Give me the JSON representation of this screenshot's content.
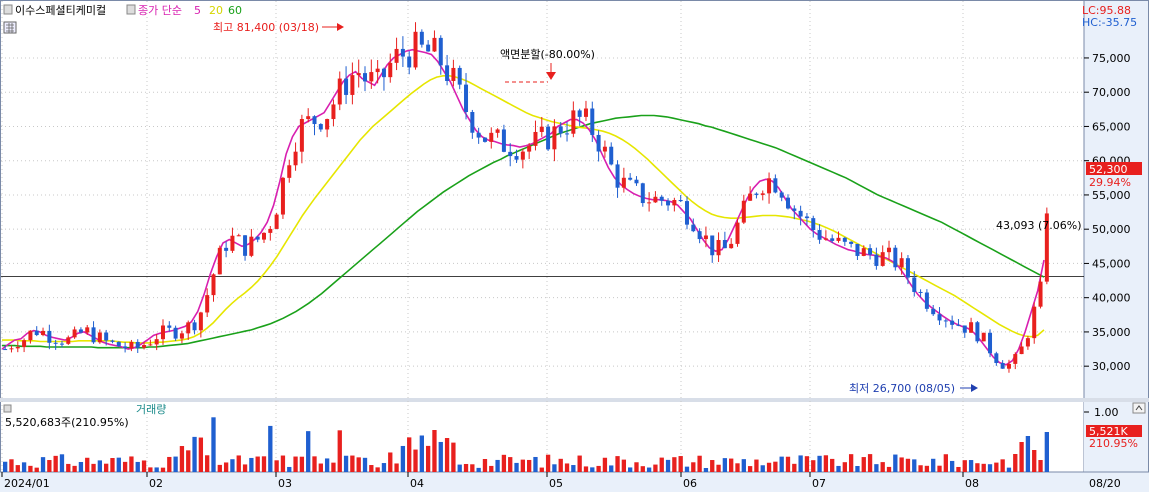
{
  "header": {
    "stock_name": "이수스페셜티케미컬",
    "ma_label": "종가 단순",
    "ma_periods": [
      "5",
      "20",
      "60"
    ],
    "ma_colors": [
      "#d81fb0",
      "#e6e600",
      "#1aa11a"
    ]
  },
  "axis_badges": {
    "lc": "LC:95.88",
    "hc": "HC:-35.75"
  },
  "annotations": {
    "high": "최고 81,400 (03/18)",
    "low": "최저 26,700 (08/05)",
    "split": "액면분할(-80.00%)",
    "ref_line": "43,093 (7.06%)",
    "current_price": "52,300",
    "current_pct": "29.94%"
  },
  "volume_panel": {
    "title": "거래량",
    "value_text": "5,520,683주(210.95%)",
    "top_tick": "1.00",
    "current_badge": "5,521K",
    "current_pct": "210.95%"
  },
  "colors": {
    "up": "#e8201e",
    "down": "#1f5fd0",
    "ma5": "#d81fb0",
    "ma20": "#e6e600",
    "ma60": "#1aa11a",
    "grid": "#c8c8c8",
    "axis_bg": "#e9f0fa"
  },
  "chart_data": {
    "type": "candlestick",
    "title": "이수스페셜티케미컬",
    "y_ticks": [
      30000,
      35000,
      40000,
      45000,
      50000,
      55000,
      60000,
      65000,
      70000,
      75000
    ],
    "y_tick_labels": [
      "30,000",
      "35,000",
      "40,000",
      "45,000",
      "50,000",
      "55,000",
      "60,000",
      "65,000",
      "70,000",
      "75,000"
    ],
    "ylim": [
      25500,
      82000
    ],
    "x_ticks": [
      "2024/01",
      "02",
      "03",
      "04",
      "05",
      "06",
      "07",
      "08",
      "08/20"
    ],
    "reference_line": 43093,
    "high": {
      "date": "03/18",
      "price": 81400
    },
    "low": {
      "date": "08/05",
      "price": 26700
    },
    "current_price": 52300,
    "series": [
      {
        "name": "5",
        "values": [
          32500,
          33200,
          33800,
          34000,
          34800,
          35200,
          35000,
          34500,
          34200,
          34000,
          33800,
          34200,
          34800,
          35000,
          34500,
          34000,
          33500,
          33200,
          33000,
          32800,
          32500,
          32700,
          33200,
          33800,
          34500,
          34800,
          35000,
          35200,
          35500,
          35800,
          36500,
          38000,
          40500,
          43500,
          46000,
          48000,
          48500,
          48000,
          47500,
          47800,
          48500,
          49500,
          51000,
          53500,
          57000,
          61000,
          63500,
          65000,
          65500,
          66000,
          66500,
          67000,
          68500,
          70000,
          71500,
          72500,
          73000,
          72000,
          71500,
          71000,
          72500,
          74000,
          75000,
          75500,
          76000,
          76200,
          76000,
          75800,
          75500,
          74500,
          73000,
          71500,
          69500,
          67500,
          66000,
          64500,
          63500,
          63000,
          62800,
          62500,
          62300,
          62200,
          62000,
          62200,
          62500,
          63000,
          63500,
          64000,
          65000,
          65500,
          66000,
          66000,
          65500,
          64500,
          63000,
          61000,
          59000,
          57500,
          56500,
          55800,
          55200,
          54800,
          54500,
          54300,
          54300,
          54200,
          54000,
          53500,
          52500,
          51500,
          50000,
          48500,
          47300,
          46800,
          47000,
          48500,
          50500,
          52500,
          54500,
          56000,
          57000,
          57300,
          57000,
          56000,
          54500,
          53000,
          52000,
          51000,
          50000,
          49300,
          48800,
          48300,
          47800,
          47400,
          47000,
          46800,
          46500,
          46300,
          46200,
          46000,
          45800,
          45300,
          44500,
          43200,
          41800,
          40500,
          39500,
          38700,
          38000,
          37300,
          36700,
          36200,
          35800,
          35500,
          34800,
          33700,
          32500,
          31300,
          30500,
          30200,
          30800,
          32500,
          35000,
          38000,
          41000,
          45500
        ]
      },
      {
        "name": "20",
        "values": [
          33800,
          33800,
          33800,
          33700,
          33700,
          33700,
          33600,
          33600,
          33600,
          33600,
          33600,
          33600,
          33700,
          33700,
          33700,
          33700,
          33700,
          33700,
          33600,
          33500,
          33500,
          33400,
          33400,
          33400,
          33500,
          33500,
          33600,
          33700,
          33800,
          34000,
          34300,
          34800,
          35500,
          36300,
          37300,
          38300,
          39200,
          40000,
          40700,
          41500,
          42400,
          43500,
          44700,
          46000,
          47500,
          49000,
          50500,
          52000,
          53300,
          54600,
          55800,
          57000,
          58200,
          59400,
          60600,
          61800,
          63000,
          64000,
          65000,
          65800,
          66600,
          67400,
          68200,
          69000,
          69800,
          70500,
          71200,
          71800,
          72200,
          72400,
          72400,
          72200,
          71900,
          71500,
          71000,
          70500,
          70000,
          69500,
          69000,
          68500,
          68000,
          67500,
          67000,
          66600,
          66300,
          66000,
          65700,
          65500,
          65300,
          65100,
          64900,
          64800,
          64700,
          64500,
          64300,
          64000,
          63600,
          63100,
          62500,
          61800,
          61000,
          60200,
          59300,
          58400,
          57500,
          56600,
          55700,
          54800,
          54000,
          53300,
          52700,
          52200,
          51900,
          51700,
          51600,
          51600,
          51700,
          51800,
          51900,
          52000,
          52000,
          52000,
          51900,
          51800,
          51600,
          51400,
          51200,
          50900,
          50600,
          50200,
          49800,
          49300,
          48800,
          48300,
          47800,
          47300,
          46800,
          46300,
          45800,
          45300,
          44800,
          44300,
          43800,
          43300,
          42800,
          42300,
          41800,
          41300,
          40800,
          40300,
          39700,
          39100,
          38500,
          37900,
          37300,
          36700,
          36100,
          35600,
          35100,
          34700,
          34400,
          34300,
          34500,
          35300
        ]
      },
      {
        "name": "60",
        "values": [
          33000,
          33000,
          33000,
          32900,
          32900,
          32900,
          32900,
          32800,
          32800,
          32800,
          32800,
          32800,
          32800,
          32800,
          32800,
          32700,
          32700,
          32700,
          32700,
          32700,
          32700,
          32700,
          32700,
          32800,
          32800,
          32900,
          33000,
          33100,
          33200,
          33300,
          33500,
          33700,
          33900,
          34100,
          34300,
          34500,
          34700,
          34900,
          35100,
          35300,
          35600,
          35900,
          36200,
          36600,
          37000,
          37500,
          38000,
          38600,
          39200,
          39900,
          40600,
          41400,
          42200,
          43000,
          43800,
          44600,
          45400,
          46200,
          47000,
          47800,
          48600,
          49400,
          50200,
          51000,
          51800,
          52600,
          53300,
          54000,
          54700,
          55400,
          56000,
          56600,
          57200,
          57800,
          58300,
          58800,
          59300,
          59800,
          60200,
          60700,
          61100,
          61500,
          61900,
          62300,
          62700,
          63100,
          63500,
          63900,
          64200,
          64500,
          64800,
          65100,
          65400,
          65600,
          65800,
          66000,
          66200,
          66300,
          66400,
          66500,
          66600,
          66600,
          66600,
          66500,
          66400,
          66200,
          66000,
          65800,
          65600,
          65400,
          65100,
          64900,
          64600,
          64300,
          64000,
          63700,
          63400,
          63100,
          62800,
          62500,
          62200,
          61900,
          61500,
          61100,
          60700,
          60300,
          59900,
          59500,
          59100,
          58700,
          58300,
          57900,
          57500,
          57000,
          56500,
          56000,
          55500,
          55000,
          54600,
          54200,
          53800,
          53400,
          53000,
          52600,
          52200,
          51800,
          51400,
          51000,
          50500,
          50000,
          49500,
          49000,
          48500,
          48000,
          47500,
          47000,
          46500,
          46000,
          45500,
          45000,
          44500,
          44000,
          43500,
          43000
        ]
      }
    ],
    "volume_series": {
      "name": "거래량",
      "unit": "주",
      "current": 5520683
    }
  }
}
